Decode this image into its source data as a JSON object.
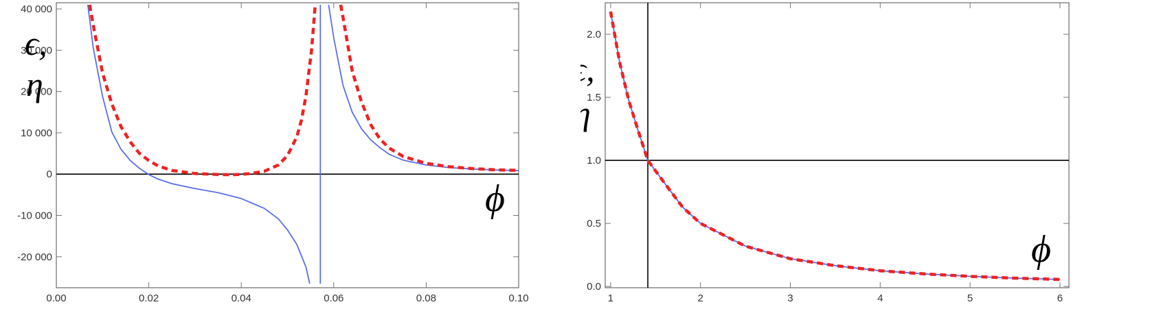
{
  "chart_data": [
    {
      "type": "line",
      "ylabel": "ϵ,\nη",
      "xlabel": "ϕ",
      "xlim": [
        0.0,
        0.1
      ],
      "ylim": [
        -27500,
        41500
      ],
      "xticks": [
        "0.00",
        "0.02",
        "0.04",
        "0.06",
        "0.08",
        "0.10"
      ],
      "yticks": [
        "-20 000",
        "-10 000",
        "0",
        "10 000",
        "20 000",
        "30 000",
        "40 000"
      ],
      "grid": false,
      "series": [
        {
          "style": "solid",
          "color": "#5a6ee8",
          "segments": [
            [
              [
                0.0068,
                41000
              ],
              [
                0.008,
                30500
              ],
              [
                0.01,
                18800
              ],
              [
                0.012,
                10200
              ],
              [
                0.014,
                6000
              ],
              [
                0.016,
                3300
              ],
              [
                0.018,
                1400
              ],
              [
                0.02,
                -100
              ],
              [
                0.022,
                -1200
              ],
              [
                0.025,
                -2300
              ],
              [
                0.03,
                -3500
              ],
              [
                0.035,
                -4500
              ],
              [
                0.04,
                -5900
              ],
              [
                0.045,
                -8300
              ],
              [
                0.048,
                -10800
              ],
              [
                0.05,
                -13500
              ],
              [
                0.052,
                -17000
              ],
              [
                0.054,
                -22500
              ],
              [
                0.0548,
                -26500
              ]
            ],
            [
              [
                0.0571,
                -26500
              ],
              [
                0.0571,
                41000
              ]
            ],
            [
              [
                0.0589,
                41000
              ],
              [
                0.06,
                33000
              ],
              [
                0.062,
                21500
              ],
              [
                0.064,
                15000
              ],
              [
                0.066,
                11000
              ],
              [
                0.068,
                8300
              ],
              [
                0.07,
                6400
              ],
              [
                0.072,
                4800
              ],
              [
                0.075,
                3400
              ],
              [
                0.08,
                2200
              ],
              [
                0.085,
                1600
              ],
              [
                0.09,
                1250
              ],
              [
                0.095,
                1000
              ],
              [
                0.1,
                850
              ]
            ]
          ]
        },
        {
          "style": "dashed",
          "color": "#ee2222",
          "segments": [
            [
              [
                0.0072,
                41000
              ],
              [
                0.008,
                36000
              ],
              [
                0.01,
                24500
              ],
              [
                0.012,
                17000
              ],
              [
                0.014,
                11500
              ],
              [
                0.016,
                7800
              ],
              [
                0.018,
                5000
              ],
              [
                0.02,
                3300
              ],
              [
                0.022,
                2000
              ],
              [
                0.025,
                900
              ],
              [
                0.03,
                150
              ],
              [
                0.035,
                -100
              ],
              [
                0.038,
                -150
              ],
              [
                0.04,
                -50
              ],
              [
                0.042,
                150
              ],
              [
                0.045,
                700
              ],
              [
                0.048,
                2200
              ],
              [
                0.05,
                4500
              ],
              [
                0.052,
                9000
              ],
              [
                0.053,
                13000
              ],
              [
                0.054,
                19000
              ],
              [
                0.0552,
                30000
              ],
              [
                0.056,
                41000
              ]
            ],
            [
              [
                0.0615,
                41000
              ],
              [
                0.062,
                38000
              ],
              [
                0.064,
                25000
              ],
              [
                0.066,
                17500
              ],
              [
                0.068,
                12000
              ],
              [
                0.07,
                8500
              ],
              [
                0.072,
                6300
              ],
              [
                0.075,
                4300
              ],
              [
                0.08,
                2600
              ],
              [
                0.085,
                1800
              ],
              [
                0.09,
                1350
              ],
              [
                0.095,
                1050
              ],
              [
                0.1,
                900
              ]
            ]
          ]
        }
      ],
      "reference_lines": [
        {
          "orientation": "horizontal",
          "value": 0
        }
      ]
    },
    {
      "type": "line",
      "ylabel": "ϵ,\nη",
      "xlabel": "ϕ",
      "xlim": [
        0.94,
        6.1
      ],
      "ylim": [
        -0.01,
        2.25
      ],
      "xticks": [
        "1",
        "2",
        "3",
        "4",
        "5",
        "6"
      ],
      "yticks": [
        "0.0",
        "0.5",
        "1.0",
        "1.5",
        "2.0"
      ],
      "grid": false,
      "series": [
        {
          "style": "solid",
          "color": "#5a6ee8",
          "segments": [
            [
              [
                1.0,
                2.18
              ],
              [
                1.1,
                1.78
              ],
              [
                1.2,
                1.48
              ],
              [
                1.3,
                1.25
              ],
              [
                1.414,
                1.0
              ],
              [
                1.6,
                0.82
              ],
              [
                1.8,
                0.63
              ],
              [
                2.0,
                0.5
              ],
              [
                2.5,
                0.32
              ],
              [
                3.0,
                0.22
              ],
              [
                3.5,
                0.165
              ],
              [
                4.0,
                0.125
              ],
              [
                4.5,
                0.099
              ],
              [
                5.0,
                0.08
              ],
              [
                5.5,
                0.066
              ],
              [
                6.0,
                0.056
              ]
            ]
          ]
        },
        {
          "style": "dashed",
          "color": "#ee2222",
          "segments": [
            [
              [
                1.0,
                2.18
              ],
              [
                1.1,
                1.78
              ],
              [
                1.2,
                1.48
              ],
              [
                1.3,
                1.25
              ],
              [
                1.414,
                1.0
              ],
              [
                1.6,
                0.82
              ],
              [
                1.8,
                0.63
              ],
              [
                2.0,
                0.5
              ],
              [
                2.5,
                0.32
              ],
              [
                3.0,
                0.22
              ],
              [
                3.5,
                0.165
              ],
              [
                4.0,
                0.125
              ],
              [
                4.5,
                0.099
              ],
              [
                5.0,
                0.08
              ],
              [
                5.5,
                0.066
              ],
              [
                6.0,
                0.056
              ]
            ]
          ]
        }
      ],
      "reference_lines": [
        {
          "orientation": "horizontal",
          "value": 1.0
        },
        {
          "orientation": "vertical",
          "value": 1.414
        }
      ]
    }
  ]
}
